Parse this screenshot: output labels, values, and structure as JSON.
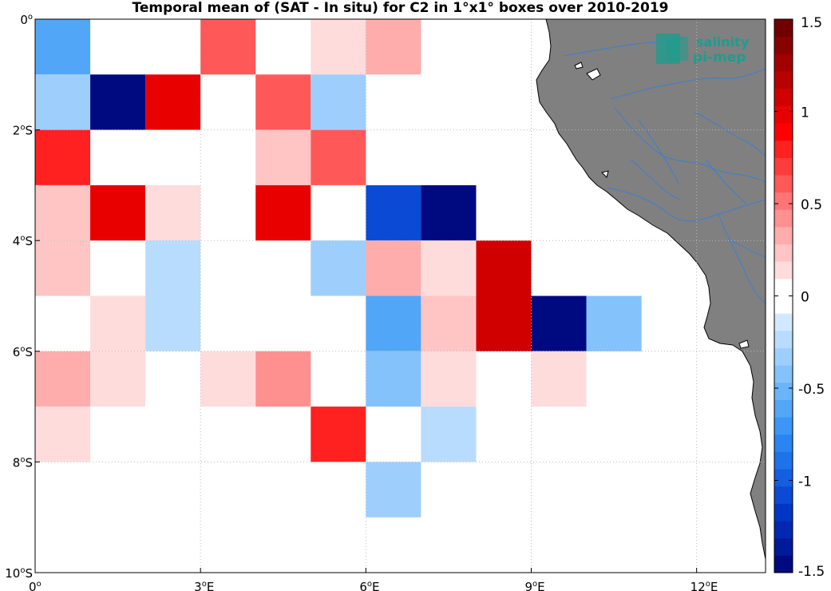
{
  "title": "Temporal mean of (SAT - In situ) for C2 in 1°x1° boxes over 2010-2019",
  "logo": {
    "line1": "salinity",
    "line2": "pi-mep",
    "color": "#1a9e8f"
  },
  "map": {
    "lon_range": [
      0,
      13.25
    ],
    "lat_range": [
      -10,
      0
    ],
    "land_color": "#808080",
    "ocean_color": "#ffffff",
    "river_color": "#3a7fd0",
    "x_ticks": [
      {
        "value": 0,
        "label": "0",
        "sup": "o"
      },
      {
        "value": 3,
        "label": "3",
        "sup": "o",
        "suffix": "E"
      },
      {
        "value": 6,
        "label": "6",
        "sup": "o",
        "suffix": "E"
      },
      {
        "value": 9,
        "label": "9",
        "sup": "o",
        "suffix": "E"
      },
      {
        "value": 12,
        "label": "12",
        "sup": "o",
        "suffix": "E"
      }
    ],
    "y_ticks": [
      {
        "value": 0,
        "label": "0",
        "sup": "o",
        "suffix": ""
      },
      {
        "value": -2,
        "label": "2",
        "sup": "o",
        "suffix": "S"
      },
      {
        "value": -4,
        "label": "4",
        "sup": "o",
        "suffix": "S"
      },
      {
        "value": -6,
        "label": "6",
        "sup": "o",
        "suffix": "S"
      },
      {
        "value": -8,
        "label": "8",
        "sup": "o",
        "suffix": "S"
      },
      {
        "value": -10,
        "label": "10",
        "sup": "o",
        "suffix": "S"
      }
    ]
  },
  "colorbar": {
    "min": -1.5,
    "max": 1.5,
    "ticks": [
      {
        "value": 1.5,
        "label": "1.5"
      },
      {
        "value": 1,
        "label": "1"
      },
      {
        "value": 0.5,
        "label": "0.5"
      },
      {
        "value": 0,
        "label": "0"
      },
      {
        "value": -0.5,
        "label": "-0.5"
      },
      {
        "value": -1,
        "label": "-1"
      },
      {
        "value": -1.5,
        "label": "-1.5"
      }
    ],
    "colors_bottom_to_top": [
      "#000a80",
      "#001a9a",
      "#0028b0",
      "#0036c4",
      "#0a4ad4",
      "#145ee0",
      "#1e72ea",
      "#2a84f2",
      "#3c96f6",
      "#52a6f8",
      "#6ab4fa",
      "#84c2fb",
      "#9ecffc",
      "#b8dcfd",
      "#d2e8fe",
      "#ffffff",
      "#ffffff",
      "#ffdcdc",
      "#ffc4c4",
      "#ffacac",
      "#ff9090",
      "#ff7474",
      "#ff5858",
      "#ff3c3c",
      "#ff2020",
      "#ff0000",
      "#e80000",
      "#d00000",
      "#b80000",
      "#a00000",
      "#880000",
      "#700000"
    ]
  },
  "chart_data": {
    "type": "heatmap",
    "title": "Temporal mean of (SAT - In situ) for C2 in 1°x1° boxes over 2010-2019",
    "units": "grid boxes 1°x1°, value = SAT - In situ",
    "cells": [
      {
        "lon": 0,
        "lat": 0,
        "value": -0.6
      },
      {
        "lon": 3,
        "lat": 0,
        "value": 0.6
      },
      {
        "lon": 5,
        "lat": 0,
        "value": 0.1
      },
      {
        "lon": 6,
        "lat": 0,
        "value": 0.3
      },
      {
        "lon": 0,
        "lat": -1,
        "value": -0.35
      },
      {
        "lon": 1,
        "lat": -1,
        "value": -1.5
      },
      {
        "lon": 2,
        "lat": -1,
        "value": 0.95
      },
      {
        "lon": 4,
        "lat": -1,
        "value": 0.6
      },
      {
        "lon": 5,
        "lat": -1,
        "value": -0.35
      },
      {
        "lon": 0,
        "lat": -2,
        "value": 0.8
      },
      {
        "lon": 4,
        "lat": -2,
        "value": 0.2
      },
      {
        "lon": 5,
        "lat": -2,
        "value": 0.6
      },
      {
        "lon": 0,
        "lat": -3,
        "value": 0.2
      },
      {
        "lon": 1,
        "lat": -3,
        "value": 0.95
      },
      {
        "lon": 2,
        "lat": -3,
        "value": 0.1
      },
      {
        "lon": 4,
        "lat": -3,
        "value": 0.95
      },
      {
        "lon": 6,
        "lat": -3,
        "value": -1.05
      },
      {
        "lon": 7,
        "lat": -3,
        "value": -1.5
      },
      {
        "lon": 0,
        "lat": -4,
        "value": 0.2
      },
      {
        "lon": 2,
        "lat": -4,
        "value": -0.2
      },
      {
        "lon": 5,
        "lat": -4,
        "value": -0.35
      },
      {
        "lon": 6,
        "lat": -4,
        "value": 0.35
      },
      {
        "lon": 7,
        "lat": -4,
        "value": 0.1
      },
      {
        "lon": 8,
        "lat": -4,
        "value": 1.05
      },
      {
        "lon": 1,
        "lat": -5,
        "value": 0.1
      },
      {
        "lon": 2,
        "lat": -5,
        "value": -0.2
      },
      {
        "lon": 6,
        "lat": -5,
        "value": -0.6
      },
      {
        "lon": 7,
        "lat": -5,
        "value": 0.2
      },
      {
        "lon": 8,
        "lat": -5,
        "value": 1.05
      },
      {
        "lon": 9,
        "lat": -5,
        "value": -1.45
      },
      {
        "lon": 10,
        "lat": -5,
        "value": -0.45
      },
      {
        "lon": 0,
        "lat": -6,
        "value": 0.35
      },
      {
        "lon": 1,
        "lat": -6,
        "value": 0.1
      },
      {
        "lon": 3,
        "lat": -6,
        "value": 0.1
      },
      {
        "lon": 4,
        "lat": -6,
        "value": 0.45
      },
      {
        "lon": 6,
        "lat": -6,
        "value": -0.45
      },
      {
        "lon": 7,
        "lat": -6,
        "value": 0.1
      },
      {
        "lon": 9,
        "lat": -6,
        "value": 0.1
      },
      {
        "lon": 0,
        "lat": -7,
        "value": 0.1
      },
      {
        "lon": 5,
        "lat": -7,
        "value": 0.8
      },
      {
        "lon": 7,
        "lat": -7,
        "value": -0.2
      },
      {
        "lon": 6,
        "lat": -8,
        "value": -0.35
      }
    ]
  }
}
